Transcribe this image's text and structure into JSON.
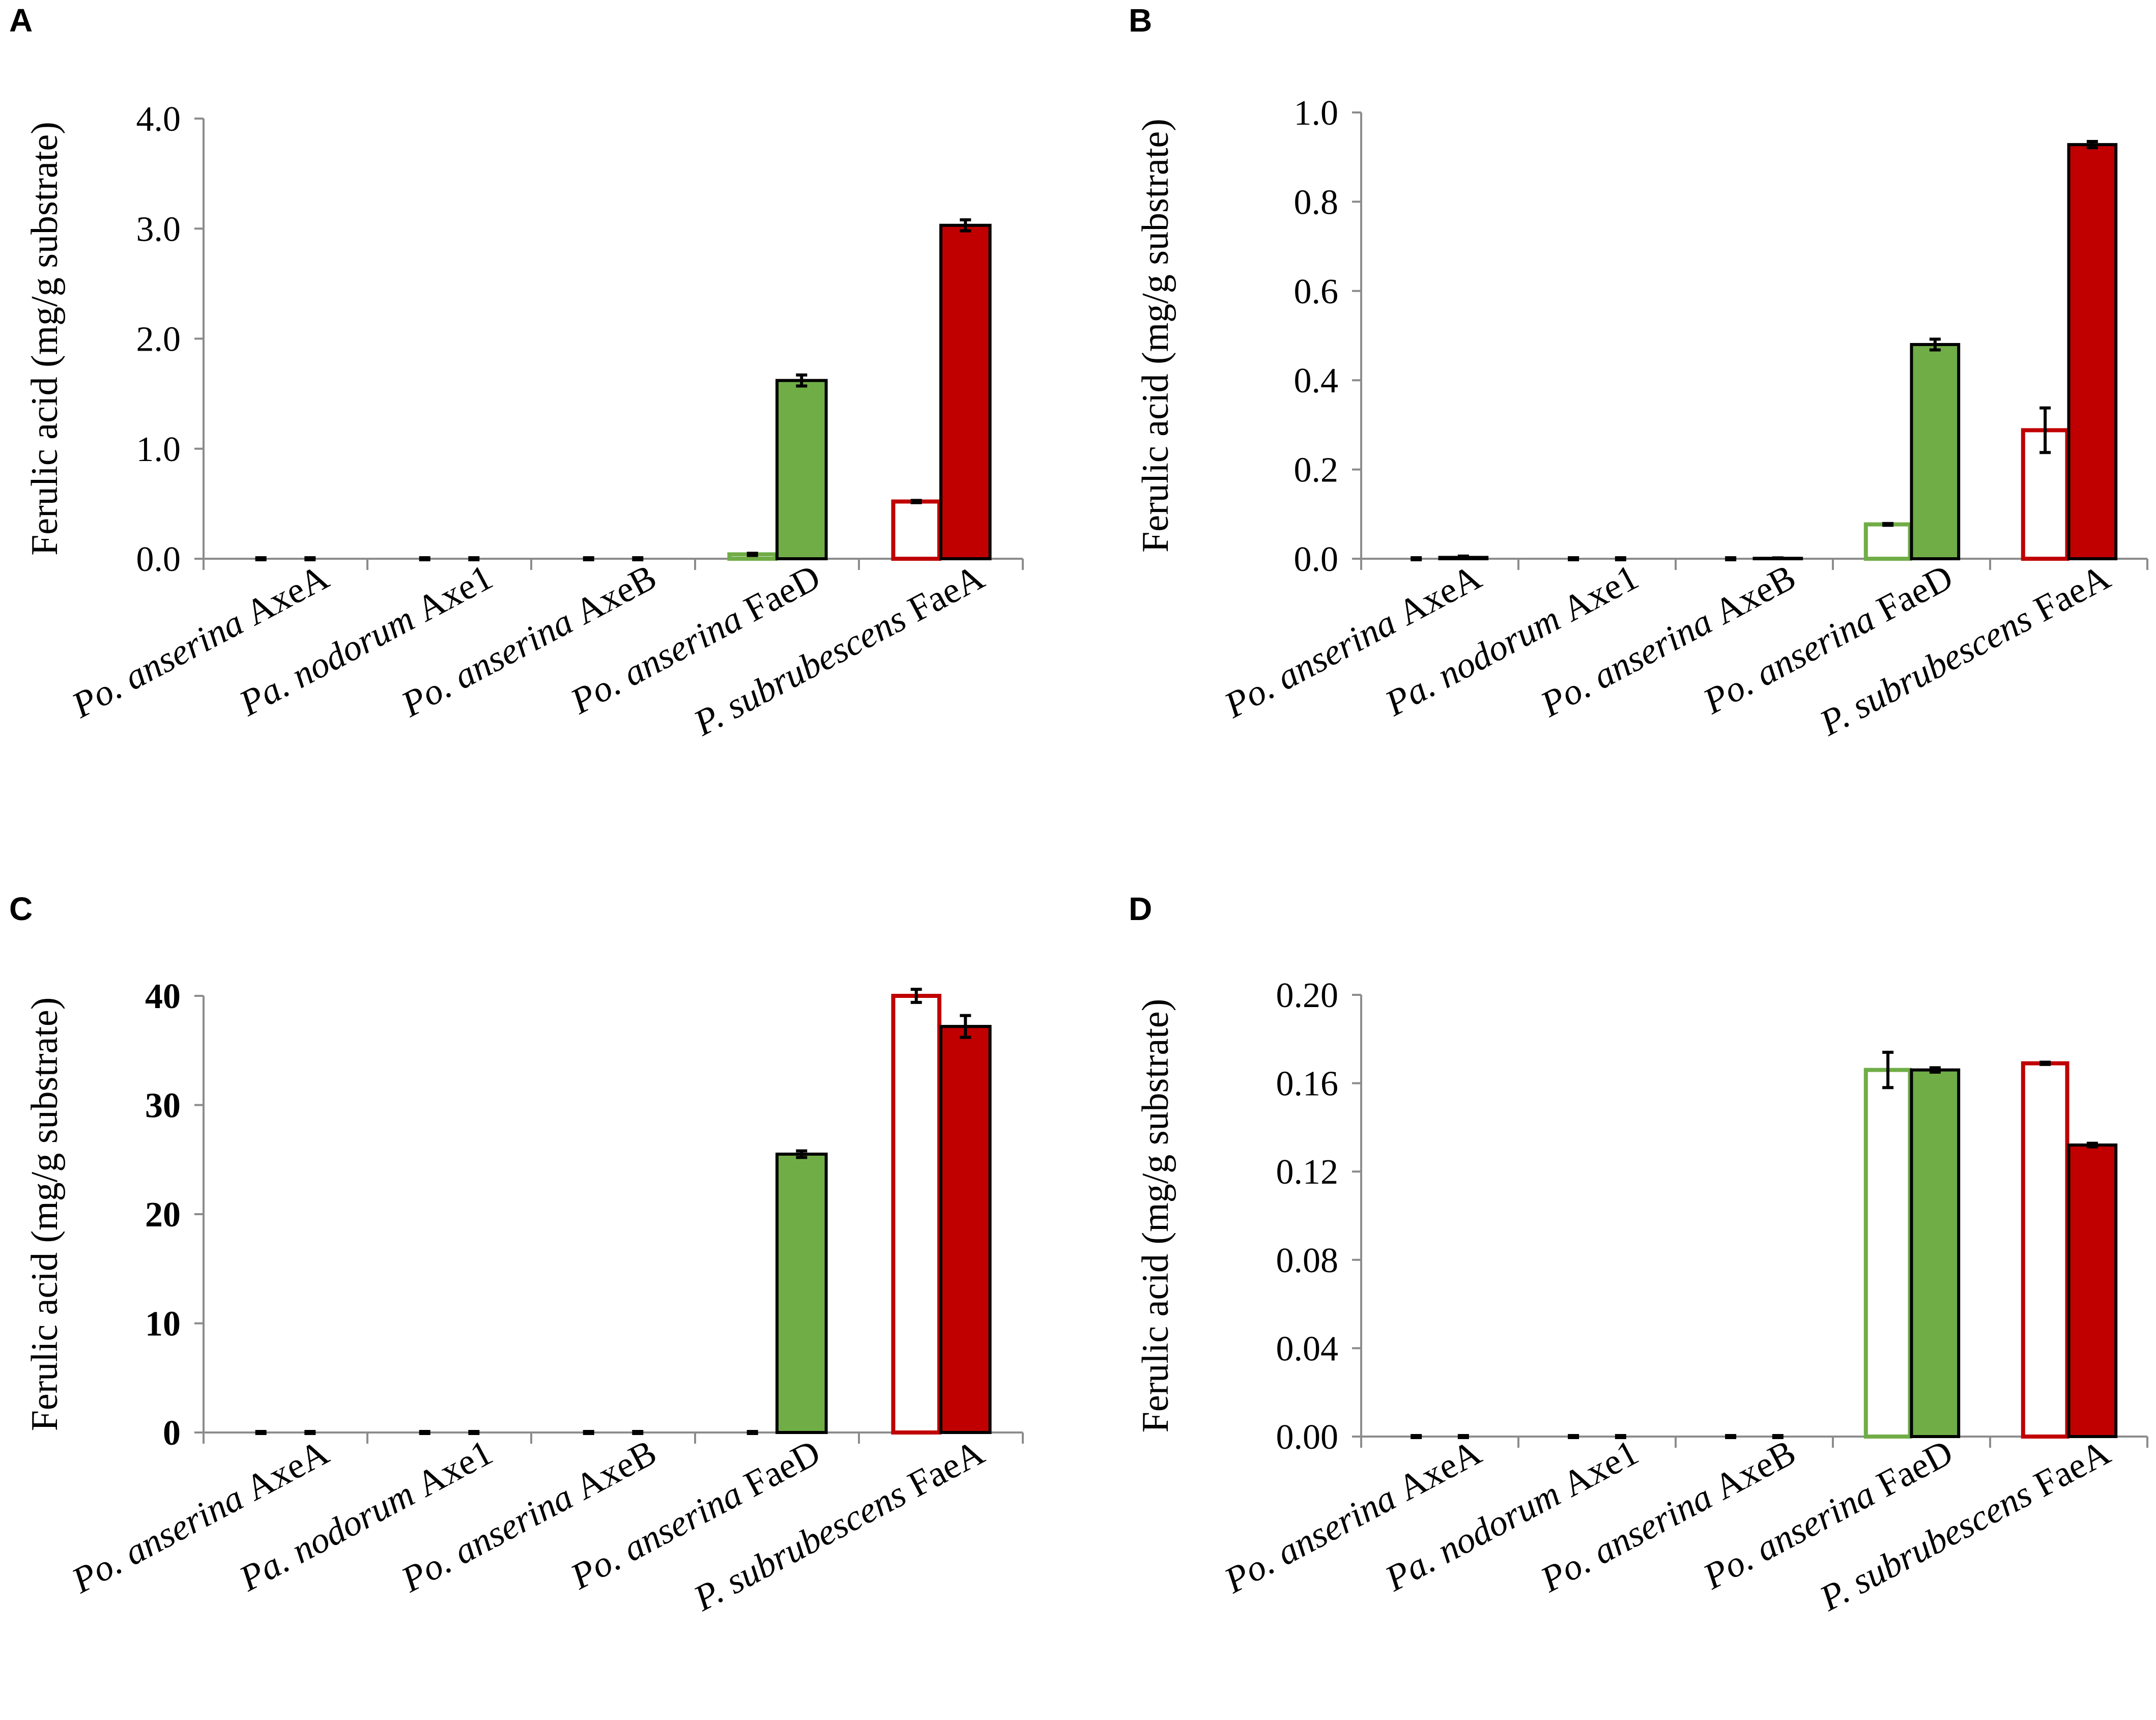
{
  "chart_data": [
    {
      "panel": "A",
      "type": "bar",
      "ylabel": "Ferulic acid (mg/g substrate)",
      "ylim": [
        0,
        4.0
      ],
      "yticks": [
        "0.0",
        "1.0",
        "2.0",
        "3.0",
        "4.0"
      ],
      "bold_ticks": false,
      "categories": [
        [
          "Po. anserina",
          " AxeA"
        ],
        [
          "Pa. nodorum",
          " Axe1"
        ],
        [
          "Po. anserina",
          " AxeB"
        ],
        [
          "Po. anserina",
          " FaeD"
        ],
        [
          "P. subrubescens",
          "  FaeA"
        ]
      ],
      "series": [
        {
          "name": "open",
          "style": "outline",
          "values": [
            0,
            0,
            0,
            0.04,
            0.52
          ],
          "errors": [
            0,
            0,
            0,
            0.01,
            0.01
          ]
        },
        {
          "name": "filled",
          "style": "filled",
          "values": [
            0,
            0,
            0,
            1.62,
            3.03
          ],
          "errors": [
            0,
            0,
            0,
            0.05,
            0.05
          ]
        }
      ]
    },
    {
      "panel": "B",
      "type": "bar",
      "ylabel": "Ferulic acid (mg/g substrate)",
      "ylim": [
        0,
        1.0
      ],
      "yticks": [
        "0.0",
        "0.2",
        "0.4",
        "0.6",
        "0.8",
        "1.0"
      ],
      "bold_ticks": false,
      "categories": [
        [
          "Po. anserina",
          " AxeA"
        ],
        [
          "Pa. nodorum",
          " Axe1"
        ],
        [
          "Po. anserina",
          " AxeB"
        ],
        [
          "Po. anserina",
          " FaeD"
        ],
        [
          "P. subrubescens",
          "  FaeA"
        ]
      ],
      "series": [
        {
          "name": "open",
          "style": "outline",
          "values": [
            0,
            0,
            0,
            0.077,
            0.288
          ],
          "errors": [
            0,
            0,
            0,
            0.002,
            0.05
          ]
        },
        {
          "name": "filled",
          "style": "filled",
          "values": [
            0.003,
            0,
            0.001,
            0.48,
            0.928
          ],
          "errors": [
            0.003,
            0,
            0.001,
            0.012,
            0.007
          ]
        }
      ]
    },
    {
      "panel": "C",
      "type": "bar",
      "ylabel": "Ferulic acid (mg/g substrate)",
      "ylim": [
        0,
        42
      ],
      "yticks": [
        "0",
        "10",
        "20",
        "30",
        "40"
      ],
      "bold_ticks": true,
      "categories": [
        [
          "Po. anserina",
          " AxeA"
        ],
        [
          "Pa. nodorum",
          " Axe1"
        ],
        [
          "Po. anserina",
          " AxeB"
        ],
        [
          "Po. anserina",
          " FaeD"
        ],
        [
          "P. subrubescens",
          "  FaeA"
        ]
      ],
      "series": [
        {
          "name": "open",
          "style": "outline",
          "values": [
            0,
            0,
            0,
            0,
            40.0
          ],
          "errors": [
            0,
            0,
            0,
            0,
            0.6
          ]
        },
        {
          "name": "filled",
          "style": "filled",
          "values": [
            0,
            0,
            0,
            25.5,
            37.2
          ],
          "errors": [
            0,
            0,
            0,
            0.3,
            1.0
          ]
        }
      ]
    },
    {
      "panel": "D",
      "type": "bar",
      "ylabel": "Ferulic acid (mg/g substrate)",
      "ylim": [
        0,
        0.2
      ],
      "yticks": [
        "0.00",
        "0.04",
        "0.08",
        "0.12",
        "0.16",
        "0.20"
      ],
      "bold_ticks": false,
      "categories": [
        [
          "Po. anserina",
          " AxeA"
        ],
        [
          "Pa. nodorum",
          " Axe1"
        ],
        [
          "Po. anserina",
          " AxeB"
        ],
        [
          "Po. anserina",
          " FaeD"
        ],
        [
          "P. subrubescens",
          "  FaeA"
        ]
      ],
      "series": [
        {
          "name": "open",
          "style": "outline",
          "values": [
            0,
            0,
            0,
            0.166,
            0.169
          ],
          "errors": [
            0,
            0,
            0,
            0.008,
            0.0005
          ]
        },
        {
          "name": "filled",
          "style": "filled",
          "values": [
            0,
            0,
            0,
            0.166,
            0.132
          ],
          "errors": [
            0,
            0,
            0,
            0.001,
            0.0008
          ]
        }
      ]
    }
  ],
  "colors": {
    "green": "#70ad47",
    "red": "#c00000",
    "axis": "#8c8c8c"
  }
}
